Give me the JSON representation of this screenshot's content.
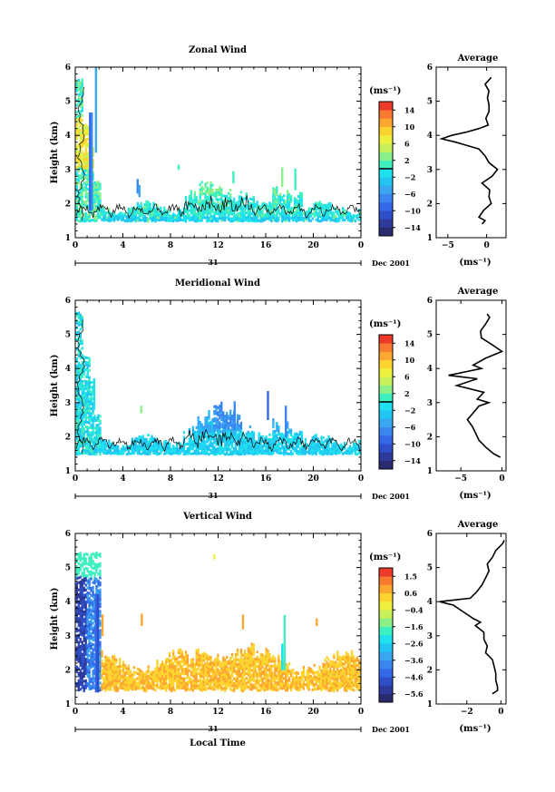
{
  "chart_data": [
    {
      "type": "heatmap",
      "title": "Zonal Wind",
      "ylabel": "Height (km)",
      "xlabel": "",
      "xlim": [
        0,
        24
      ],
      "ylim": [
        1,
        6
      ],
      "xticks": [
        "0",
        "4",
        "8",
        "12",
        "16",
        "20",
        "0"
      ],
      "yticks": [
        "1",
        "2",
        "3",
        "4",
        "5",
        "6"
      ],
      "day_label": "31",
      "date_label": "Dec 2001",
      "colorbar": {
        "unit": "(ms⁻¹)",
        "labels": [
          "14",
          "10",
          "6",
          "2",
          "−2",
          "−6",
          "−10",
          "−14"
        ],
        "range": [
          -16,
          16
        ],
        "zero_line": 0
      },
      "average_profile": {
        "title": "Average",
        "xlabel": "(ms⁻¹)",
        "xlim": [
          -6.5,
          2.5
        ],
        "xticks": [
          "−5",
          "0"
        ],
        "xtick_values": [
          -5,
          0
        ],
        "height": [
          1.4,
          1.5,
          1.6,
          1.8,
          2.0,
          2.2,
          2.4,
          2.6,
          2.8,
          3.0,
          3.2,
          3.4,
          3.6,
          3.8,
          3.9,
          4.0,
          4.1,
          4.2,
          4.3,
          4.5,
          4.7,
          4.9,
          5.1,
          5.3,
          5.5,
          5.7
        ],
        "value": [
          -0.6,
          -0.2,
          -1.0,
          -0.4,
          0.6,
          0.3,
          0.4,
          -0.6,
          0.7,
          1.4,
          0.3,
          -0.2,
          -1.0,
          -4.0,
          -5.8,
          -4.5,
          -2.5,
          -1.0,
          0.2,
          -0.1,
          0.3,
          0.3,
          0.1,
          0.3,
          -0.2,
          0.6
        ]
      }
    },
    {
      "type": "heatmap",
      "title": "Meridional Wind",
      "ylabel": "Height (km)",
      "xlabel": "",
      "xlim": [
        0,
        24
      ],
      "ylim": [
        1,
        6
      ],
      "xticks": [
        "0",
        "4",
        "8",
        "12",
        "16",
        "20",
        "0"
      ],
      "yticks": [
        "1",
        "2",
        "3",
        "4",
        "5",
        "6"
      ],
      "day_label": "31",
      "date_label": "Dec 2001",
      "colorbar": {
        "unit": "(ms⁻¹)",
        "labels": [
          "14",
          "10",
          "6",
          "2",
          "−2",
          "−6",
          "−10",
          "−14"
        ],
        "range": [
          -16,
          16
        ],
        "zero_line": 0
      },
      "average_profile": {
        "title": "Average",
        "xlabel": "(ms⁻¹)",
        "xlim": [
          -8,
          0.5
        ],
        "xticks": [
          "−5",
          "0"
        ],
        "xtick_values": [
          -5,
          0
        ],
        "height": [
          1.4,
          1.5,
          1.7,
          1.9,
          2.1,
          2.3,
          2.5,
          2.7,
          2.9,
          3.0,
          3.1,
          3.3,
          3.5,
          3.7,
          3.8,
          3.9,
          4.0,
          4.1,
          4.3,
          4.5,
          4.7,
          4.9,
          5.1,
          5.3,
          5.5,
          5.6
        ],
        "value": [
          -0.2,
          -1.0,
          -2.0,
          -2.8,
          -3.2,
          -3.6,
          -4.2,
          -3.5,
          -2.8,
          -1.6,
          -3.0,
          -2.2,
          -5.5,
          -3.0,
          -6.5,
          -4.5,
          -2.5,
          -3.5,
          -2.0,
          0.0,
          -1.2,
          -2.5,
          -2.6,
          -2.0,
          -1.5,
          -1.8
        ]
      }
    },
    {
      "type": "heatmap",
      "title": "Vertical Wind",
      "ylabel": "Height (km)",
      "xlabel": "Local Time",
      "xlim": [
        0,
        24
      ],
      "ylim": [
        1,
        6
      ],
      "xticks": [
        "0",
        "4",
        "8",
        "12",
        "16",
        "20",
        "0"
      ],
      "yticks": [
        "1",
        "2",
        "3",
        "4",
        "5",
        "6"
      ],
      "day_label": "31",
      "date_label": "Dec 2001",
      "colorbar": {
        "unit": "(ms⁻¹)",
        "labels": [
          "1.5",
          "0.6",
          "−0.4",
          "−1.6",
          "−2.6",
          "−3.6",
          "−4.6",
          "−5.6"
        ],
        "range": [
          -6.5,
          2
        ],
        "zero_line": null
      },
      "average_profile": {
        "title": "Average",
        "xlabel": "(ms⁻¹)",
        "xlim": [
          -3.8,
          0.3
        ],
        "xticks": [
          "−2",
          "0"
        ],
        "xtick_values": [
          -2,
          0
        ],
        "height": [
          1.3,
          1.4,
          1.5,
          1.7,
          1.9,
          2.1,
          2.3,
          2.5,
          2.7,
          2.9,
          3.1,
          3.3,
          3.4,
          3.5,
          3.7,
          3.9,
          4.0,
          4.1,
          4.3,
          4.5,
          4.7,
          4.9,
          5.1,
          5.3,
          5.5,
          5.7,
          5.8
        ],
        "value": [
          -0.5,
          -0.2,
          -0.2,
          -0.3,
          -0.3,
          -0.4,
          -0.5,
          -0.9,
          -0.8,
          -1.0,
          -1.0,
          -1.5,
          -1.2,
          -1.6,
          -2.2,
          -2.8,
          -3.6,
          -1.8,
          -1.4,
          -1.1,
          -0.9,
          -0.7,
          -0.8,
          -0.5,
          -0.3,
          0.1,
          0.2
        ]
      }
    }
  ]
}
